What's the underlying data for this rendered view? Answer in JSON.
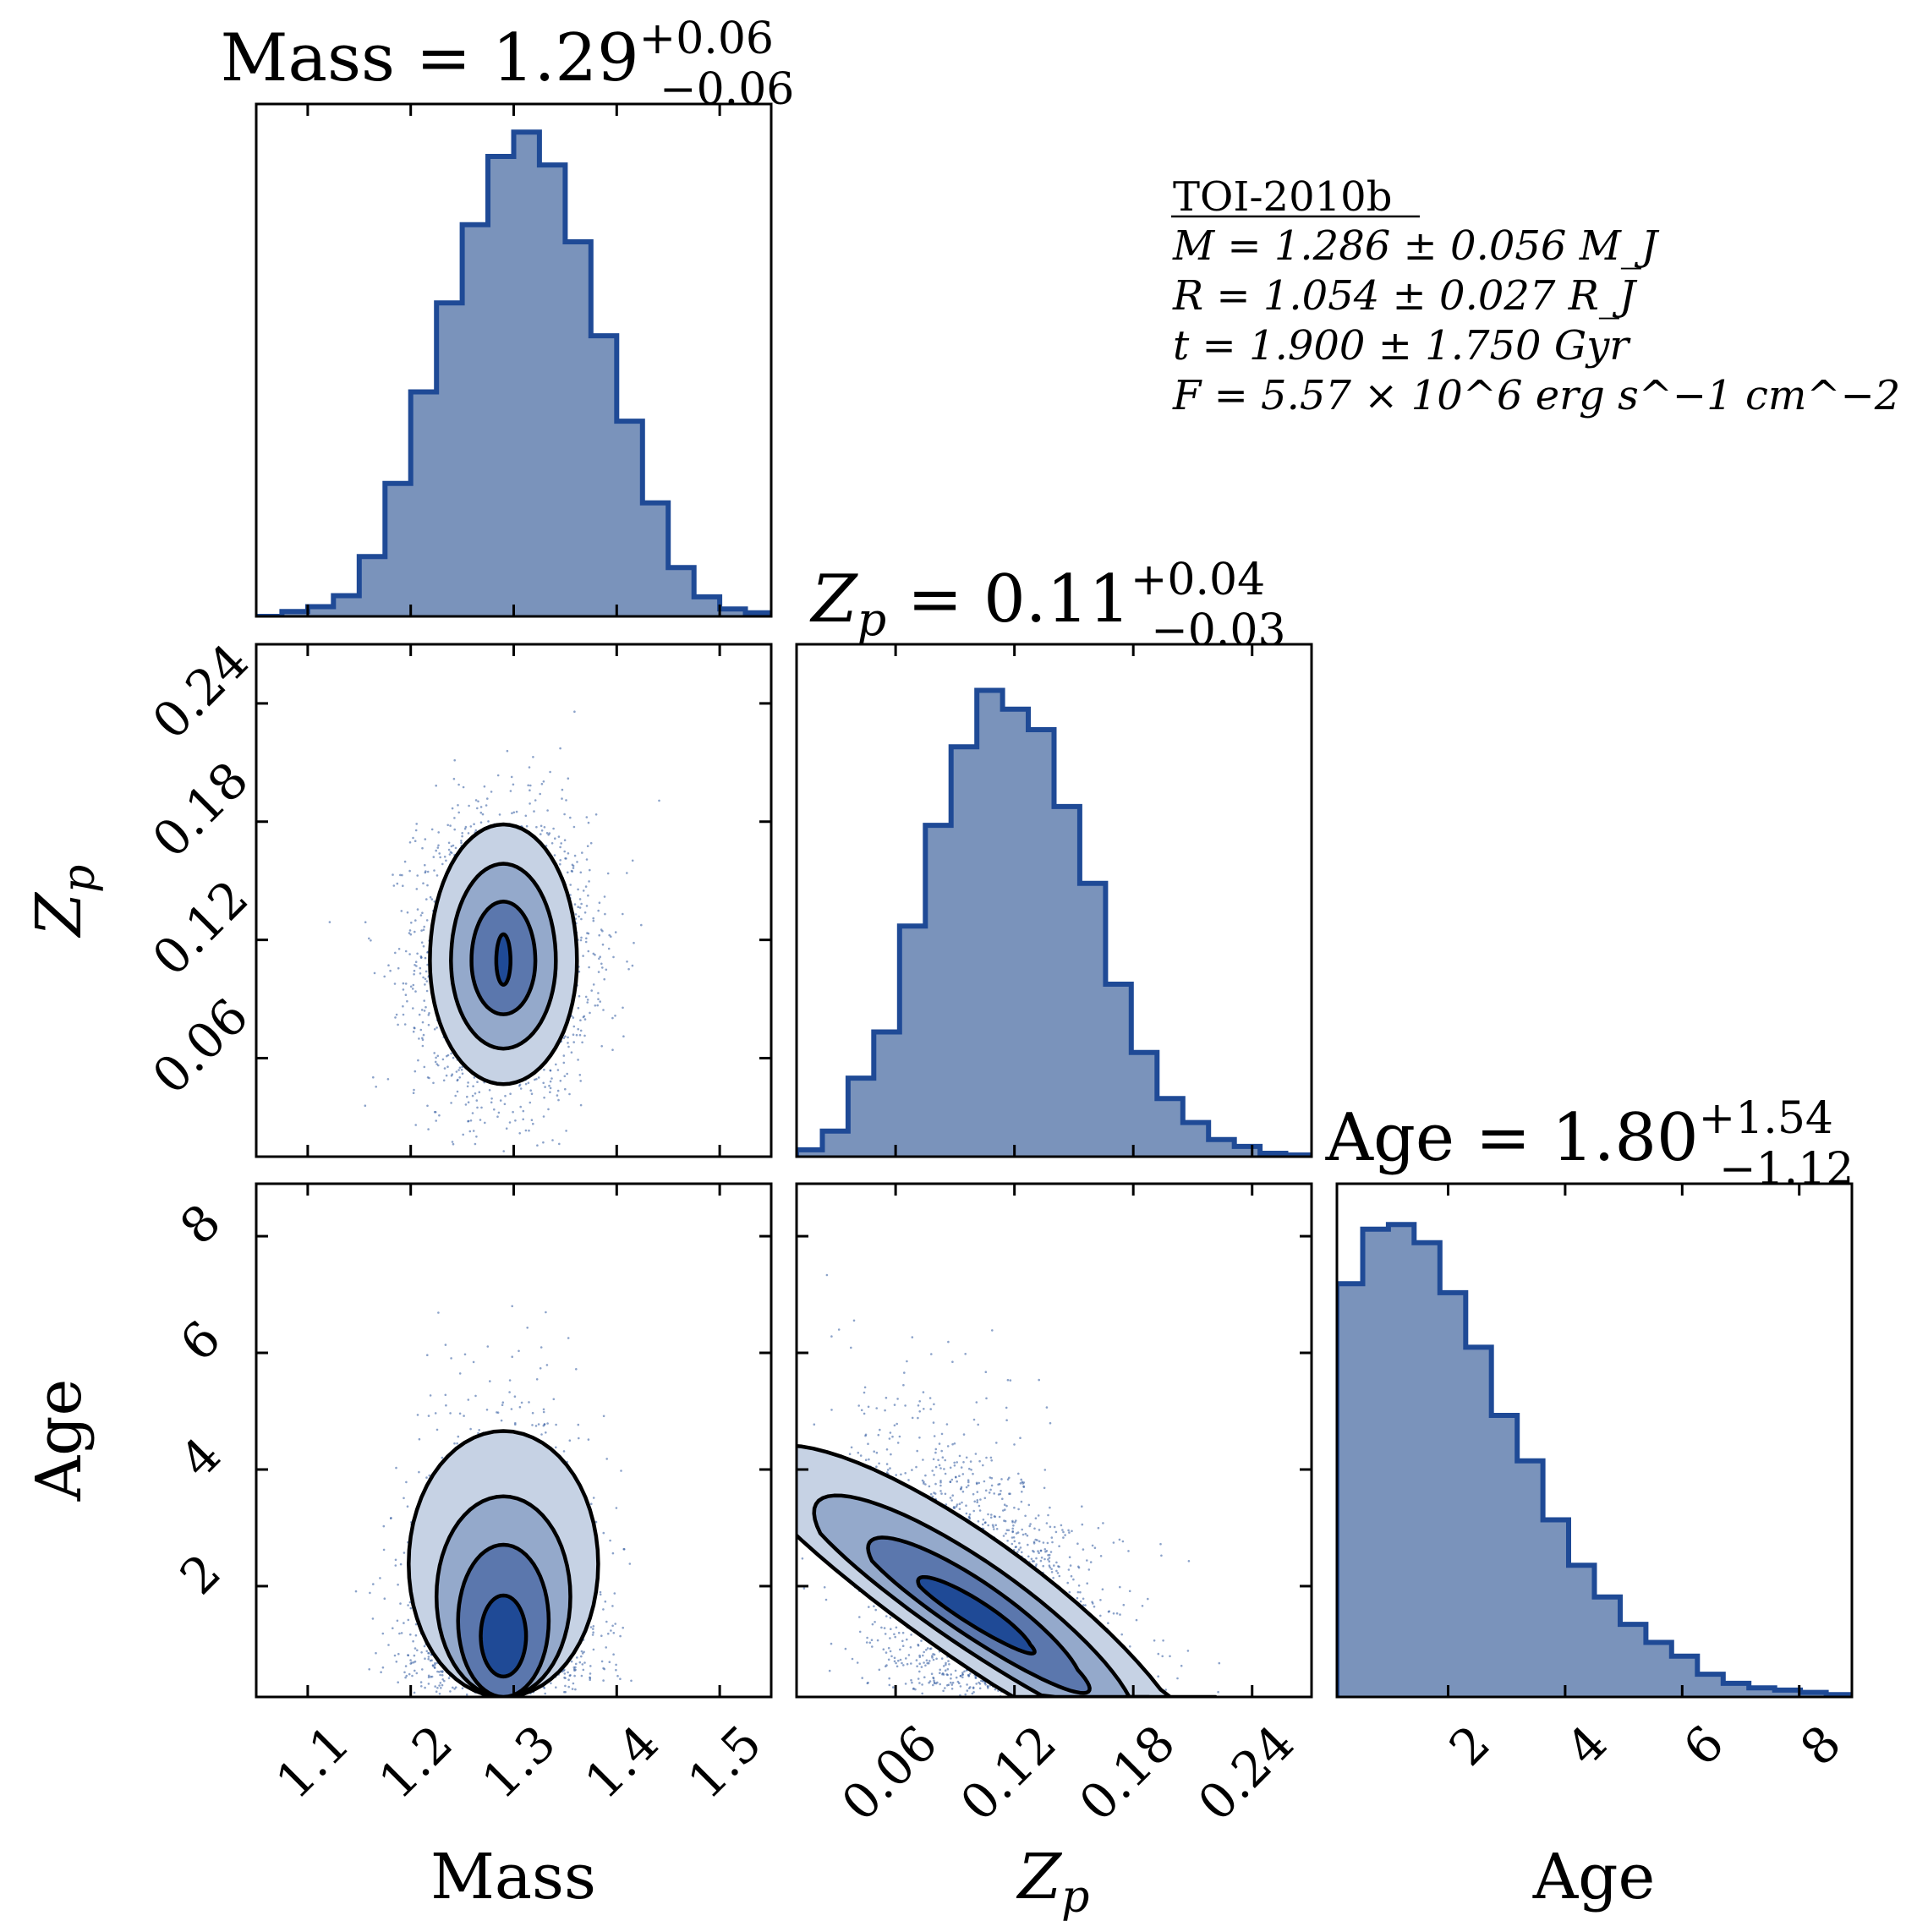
{
  "chart_data": {
    "type": "corner",
    "colors": {
      "line": "#1f4a96",
      "hist_fill": "#7a93bb",
      "contour_levels": [
        "#c6d2e4",
        "#94a9cb",
        "#5b77ad",
        "#1f4a96"
      ],
      "scatter": "#2d579e"
    },
    "parameters": [
      {
        "name": "Mass",
        "label": "Mass",
        "range": [
          1.05,
          1.55
        ],
        "ticks": [
          1.1,
          1.2,
          1.3,
          1.4,
          1.5
        ],
        "tick_labels": [
          "1.1",
          "1.2",
          "1.3",
          "1.4",
          "1.5"
        ],
        "title": {
          "main": "Mass = 1.29",
          "sup": "+0.06",
          "sub": "−0.06"
        }
      },
      {
        "name": "Zp",
        "label": "Z",
        "label_sub": "p",
        "range": [
          0.01,
          0.27
        ],
        "ticks": [
          0.06,
          0.12,
          0.18,
          0.24
        ],
        "tick_labels": [
          "0.06",
          "0.12",
          "0.18",
          "0.24"
        ],
        "title": {
          "main": "Z",
          "main_sub": "p",
          "main_rest": " = 0.11",
          "sup": "+0.04",
          "sub": "−0.03"
        }
      },
      {
        "name": "Age",
        "label": "Age",
        "range": [
          0.1,
          8.9
        ],
        "ticks": [
          2,
          4,
          6,
          8
        ],
        "tick_labels": [
          "2",
          "4",
          "6",
          "8"
        ],
        "title": {
          "main": "Age = 1.80",
          "sup": "+1.54",
          "sub": "−1.12"
        }
      }
    ],
    "histograms": [
      {
        "param": "Mass",
        "edges": [
          1.05,
          1.075,
          1.1,
          1.125,
          1.15,
          1.175,
          1.2,
          1.225,
          1.25,
          1.275,
          1.3,
          1.325,
          1.35,
          1.375,
          1.4,
          1.425,
          1.45,
          1.475,
          1.5,
          1.525,
          1.55
        ],
        "values": [
          0.0,
          0.4,
          0.8,
          1.7,
          4.9,
          10.9,
          18.4,
          25.7,
          32.1,
          37.7,
          39.7,
          37.0,
          30.7,
          23.0,
          16.0,
          9.3,
          4.0,
          1.6,
          0.6,
          0.3
        ],
        "ymax": 42
      },
      {
        "param": "Zp",
        "edges": [
          0.01,
          0.023,
          0.036,
          0.049,
          0.062,
          0.075,
          0.088,
          0.101,
          0.114,
          0.127,
          0.14,
          0.153,
          0.166,
          0.179,
          0.192,
          0.205,
          0.218,
          0.231,
          0.244,
          0.257,
          0.27
        ],
        "values": [
          0.4,
          1.5,
          4.6,
          7.3,
          13.5,
          19.4,
          24.0,
          27.3,
          26.2,
          25.0,
          20.5,
          16.0,
          10.1,
          6.1,
          3.4,
          2.0,
          1.0,
          0.6,
          0.2,
          0.1
        ],
        "ymax": 30
      },
      {
        "param": "Age",
        "edges": [
          0.1,
          0.54,
          0.98,
          1.42,
          1.86,
          2.3,
          2.74,
          3.18,
          3.62,
          4.06,
          4.5,
          4.94,
          5.38,
          5.82,
          6.26,
          6.7,
          7.14,
          7.58,
          8.02,
          8.46,
          8.9
        ],
        "values": [
          9.1,
          10.3,
          10.4,
          10.0,
          8.9,
          7.7,
          6.2,
          5.2,
          3.9,
          2.9,
          2.2,
          1.6,
          1.2,
          0.9,
          0.5,
          0.3,
          0.2,
          0.15,
          0.1,
          0.05
        ],
        "ymax": 11.3
      }
    ],
    "contours_2d": [
      {
        "x": "Mass",
        "y": "Zp",
        "center": [
          1.29,
          0.1094
        ],
        "rotation_deg": 0,
        "levels": [
          {
            "rx": 0.0069,
            "ry": 0.0128
          },
          {
            "rx": 0.031,
            "ry": 0.0286
          },
          {
            "rx": 0.0509,
            "ry": 0.0469
          },
          {
            "rx": 0.0714,
            "ry": 0.0659
          }
        ],
        "scatter_sigma": [
          0.058,
          0.038
        ]
      },
      {
        "x": "Mass",
        "y": "Age",
        "shape": "arch",
        "center_x": 1.29,
        "levels": [
          {
            "rx": 0.022,
            "top": 1.84,
            "bottom": 0.45
          },
          {
            "rx": 0.044,
            "top": 2.71,
            "bottom": 0.1
          },
          {
            "rx": 0.065,
            "top": 3.54,
            "bottom": 0.1
          },
          {
            "rx": 0.092,
            "top": 4.66,
            "bottom": 0.1
          }
        ],
        "scatter_sigma": [
          0.058,
          1.55
        ]
      },
      {
        "x": "Zp",
        "y": "Age",
        "shape": "tilted",
        "center": [
          0.1,
          1.5
        ],
        "levels": [
          {
            "a": 0.028,
            "b": 0.42
          },
          {
            "a": 0.052,
            "b": 0.95
          },
          {
            "a": 0.078,
            "b": 1.5
          },
          {
            "a": 0.106,
            "b": 2.2
          }
        ],
        "scatter_sigma": [
          0.038,
          1.55
        ]
      }
    ],
    "annotation": {
      "title": "TOI-2010b",
      "lines": [
        "M = 1.286 ± 0.056 M_J",
        "R = 1.054 ± 0.027 R_J",
        "t = 1.900 ± 1.750 Gyr",
        "F = 5.57 × 10^6 erg s^−1 cm^−2"
      ]
    }
  }
}
